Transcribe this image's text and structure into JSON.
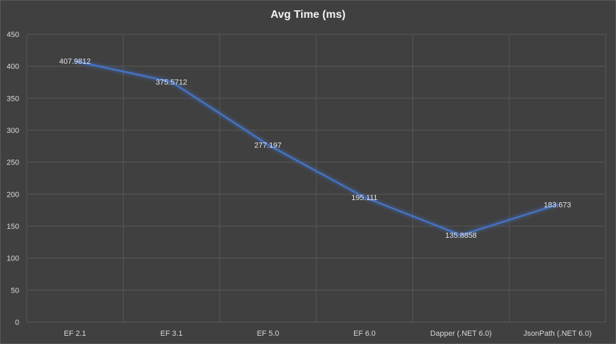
{
  "chart_data": {
    "type": "line",
    "title": "Avg Time (ms)",
    "xlabel": "",
    "ylabel": "",
    "categories": [
      "EF 2.1",
      "EF 3.1",
      "EF 5.0",
      "EF 6.0",
      "Dapper (.NET 6.0)",
      "JsonPath (.NET 6.0)"
    ],
    "series": [
      {
        "values": [
          407.9812,
          375.5712,
          277.197,
          195.111,
          135.8858,
          183.673
        ],
        "labels": [
          "407.9812",
          "375.5712",
          "277.197",
          "195.111",
          "135.8858",
          "183.673"
        ]
      }
    ],
    "ylim": [
      0,
      450
    ],
    "yticks": [
      0,
      50,
      100,
      150,
      200,
      250,
      300,
      350,
      400,
      450
    ],
    "grid": true,
    "legend": "none",
    "colors": {
      "background": "#404040",
      "grid": "#595959",
      "line": "#4472c4",
      "text": "#d9d9d9"
    }
  }
}
